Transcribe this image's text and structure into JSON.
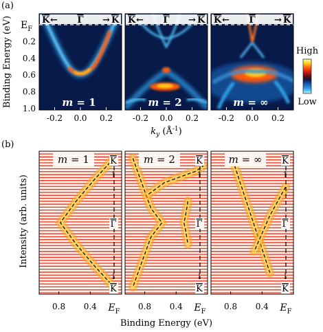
{
  "panel_labels": {
    "a": "(a)",
    "b": "(b)"
  },
  "colorbar": {
    "high": "High",
    "low": "Low",
    "colors": [
      "#9cf0ff",
      "#2fa0e8",
      "#0a2a6e",
      "#0a1a4a",
      "#2a1e3a",
      "#7a1410",
      "#c81e10",
      "#ff5a10",
      "#ffd21e",
      "#fff8b0"
    ]
  },
  "shared": {
    "ef_label": "E",
    "ef_sub": "F",
    "kbar": "K",
    "gbar": "Γ",
    "arrow_left": "←",
    "arrow_right": "→",
    "arrow_up": "↑",
    "arrow_down": "↓"
  },
  "top_axes": {
    "ylabel": "Binding Energy (eV)",
    "yticks": [
      "0.2",
      "0.4",
      "0.6",
      "0.8",
      "1.0"
    ],
    "xlabel_k": "k",
    "xlabel_sub": "y",
    "xlabel_unit": " (Å",
    "xlabel_exp": "-1",
    "xlabel_close": ")",
    "xticks": [
      "-0.2",
      "0.0",
      "0.2"
    ],
    "xlim": [
      -0.32,
      0.32
    ],
    "ylim": [
      0.0,
      1.0
    ]
  },
  "bottom_axes": {
    "ylabel": "Intensity (arb. units)",
    "xlabel": "Binding Energy (eV)",
    "xticks": [
      "0.8",
      "0.4"
    ],
    "xlim": [
      1.05,
      0.0
    ]
  },
  "panel_titles": [
    {
      "m": "m",
      "eq": " = ",
      "val": "1"
    },
    {
      "m": "m",
      "eq": " = ",
      "val": "2"
    },
    {
      "m": "m",
      "eq": " = ",
      "val": "∞"
    }
  ],
  "chart_data": [
    {
      "type": "heatmap",
      "panel": "a-1",
      "xlabel": "k_y (Å^-1)",
      "ylabel": "Binding Energy (eV)",
      "description_bands": [
        {
          "k": [
            -0.25,
            -0.15,
            -0.05,
            0.0,
            0.05,
            0.12,
            0.2,
            0.25
          ],
          "E": [
            0.05,
            0.3,
            0.52,
            0.57,
            0.52,
            0.33,
            0.1,
            0.02
          ]
        }
      ]
    },
    {
      "type": "heatmap",
      "panel": "a-2",
      "xlabel": "k_y (Å^-1)",
      "ylabel": "Binding Energy (eV)",
      "description_bands": [
        {
          "k": [
            -0.22,
            -0.12,
            -0.05,
            0.0,
            0.05,
            0.12,
            0.22
          ],
          "E": [
            0.02,
            0.12,
            0.2,
            0.22,
            0.2,
            0.12,
            0.02
          ]
        },
        {
          "k": [
            -0.12,
            -0.05,
            0.0,
            0.05,
            0.12
          ],
          "E": [
            0.0,
            0.22,
            0.35,
            0.22,
            0.0
          ]
        },
        {
          "k": [
            -0.3,
            -0.15,
            0.0,
            0.15,
            0.3
          ],
          "E": [
            1.0,
            0.78,
            0.58,
            0.78,
            1.0
          ]
        }
      ]
    },
    {
      "type": "heatmap",
      "panel": "a-inf",
      "xlabel": "k_y (Å^-1)",
      "ylabel": "Binding Energy (eV)",
      "description_bands": [
        {
          "k": [
            -0.04,
            -0.02,
            0.0,
            0.02,
            0.04
          ],
          "E": [
            0.0,
            0.18,
            0.3,
            0.18,
            0.0
          ]
        },
        {
          "k": [
            -0.25,
            -0.1,
            0.0,
            0.1,
            0.25
          ],
          "E": [
            0.75,
            0.6,
            0.55,
            0.58,
            0.7
          ]
        }
      ]
    },
    {
      "type": "line",
      "panel": "b-1",
      "xlabel": "Binding Energy (eV)",
      "ylabel": "Intensity (arb. units)",
      "series": [
        {
          "x": [
            0.1,
            0.35,
            0.58,
            0.78,
            0.58,
            0.35,
            0.1
          ],
          "y": [
            0.05,
            0.2,
            0.35,
            0.5,
            0.65,
            0.8,
            0.95
          ]
        }
      ]
    },
    {
      "type": "line",
      "panel": "b-2",
      "xlabel": "Binding Energy (eV)",
      "ylabel": "Intensity (arb. units)",
      "series": [
        {
          "x": [
            0.95,
            0.82,
            0.72,
            0.58,
            0.72,
            0.82,
            0.95
          ],
          "y": [
            0.05,
            0.25,
            0.4,
            0.5,
            0.6,
            0.75,
            0.95
          ]
        },
        {
          "x": [
            0.25,
            0.28,
            0.3,
            0.28,
            0.25
          ],
          "y": [
            0.35,
            0.45,
            0.5,
            0.55,
            0.65
          ]
        },
        {
          "x": [
            0.75,
            0.55,
            0.35,
            0.15,
            0.05
          ],
          "y": [
            0.3,
            0.22,
            0.18,
            0.14,
            0.1
          ]
        }
      ]
    },
    {
      "type": "line",
      "panel": "b-inf",
      "xlabel": "Binding Energy (eV)",
      "ylabel": "Intensity (arb. units)",
      "series": [
        {
          "x": [
            0.75,
            0.6,
            0.45,
            0.3
          ],
          "y": [
            0.1,
            0.35,
            0.6,
            0.85
          ]
        },
        {
          "x": [
            0.1,
            0.3,
            0.5
          ],
          "y": [
            0.25,
            0.45,
            0.7
          ]
        }
      ]
    }
  ]
}
